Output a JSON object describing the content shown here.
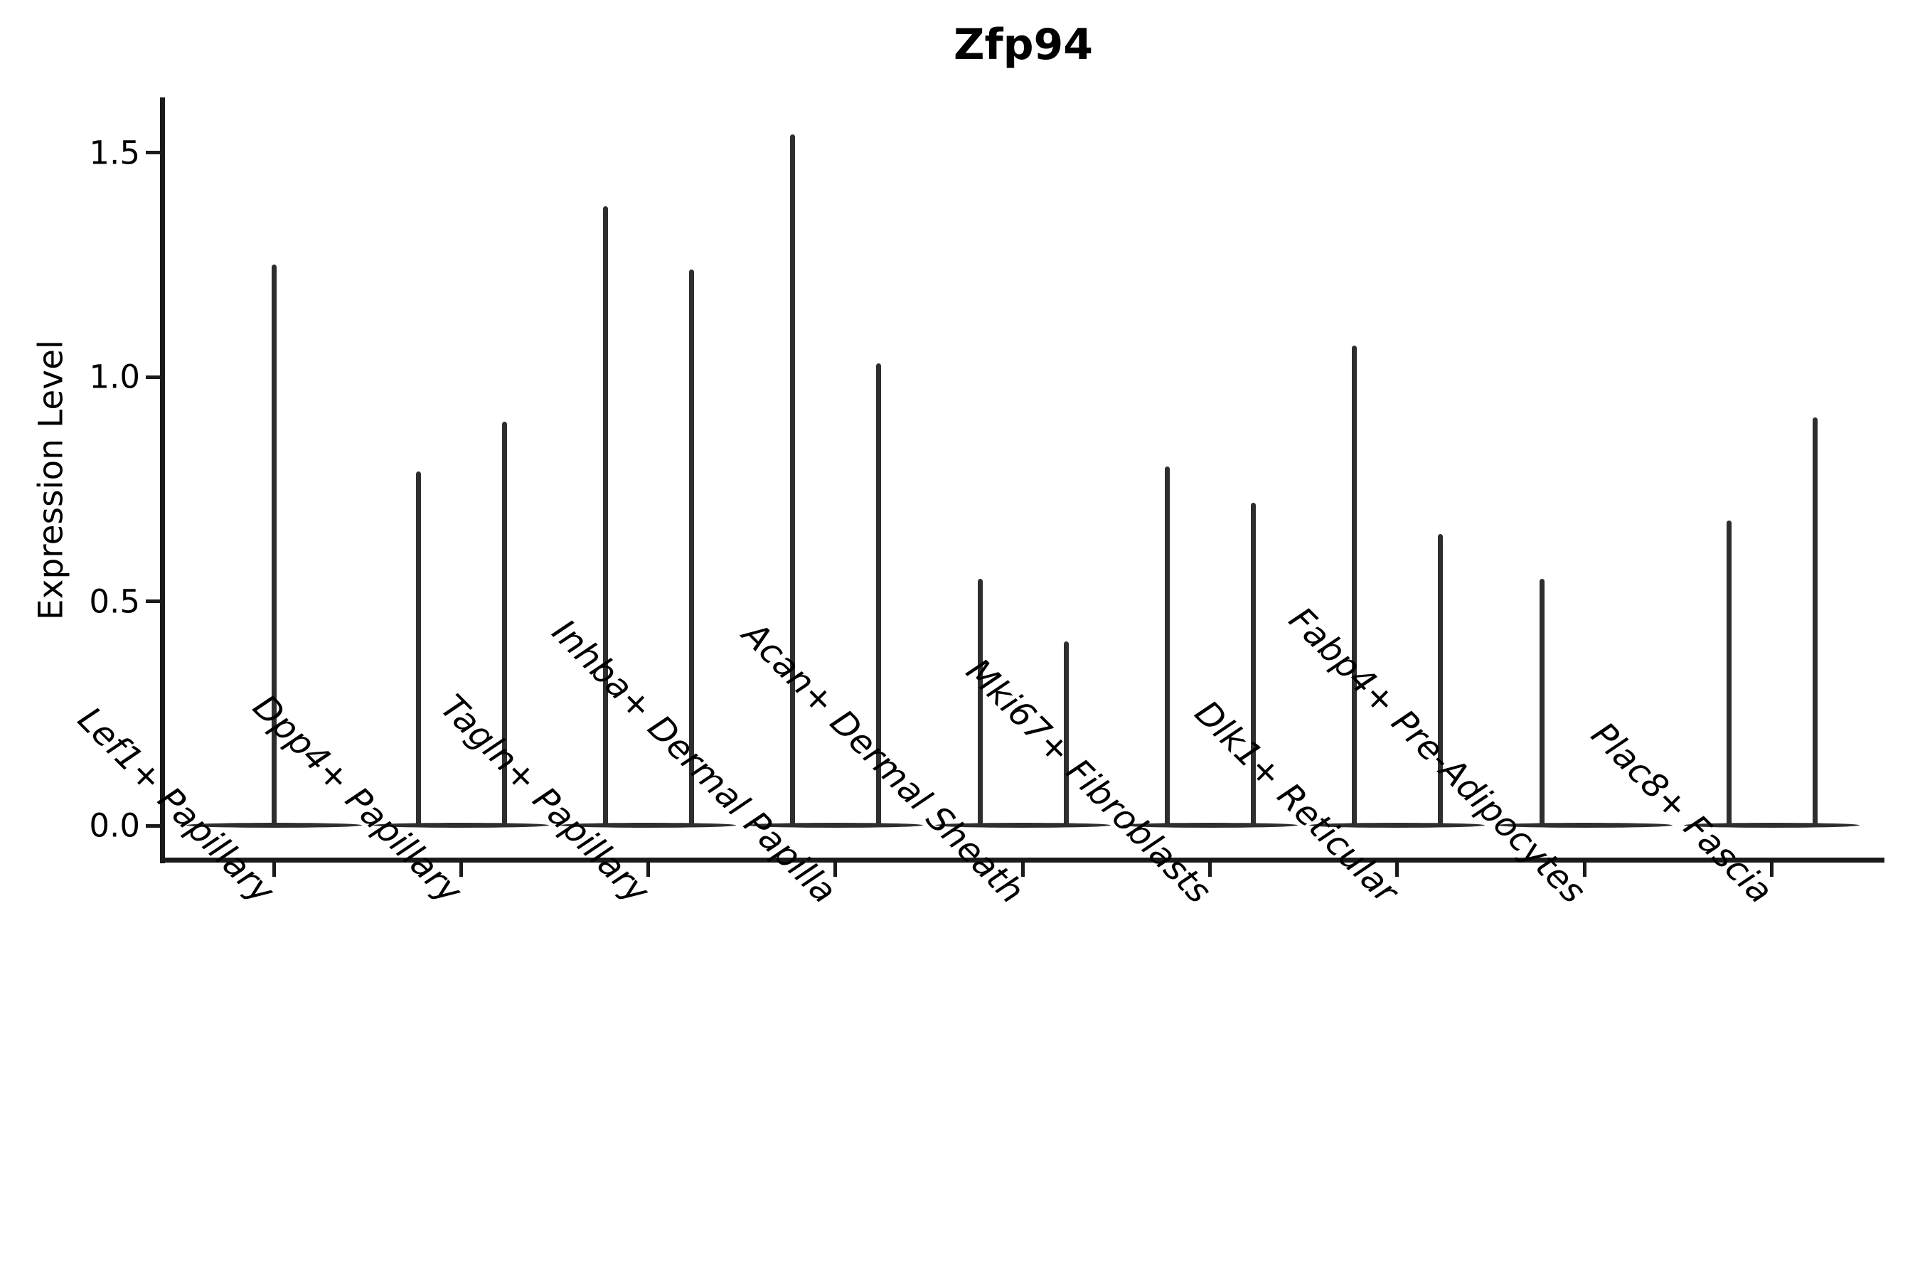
{
  "figure": {
    "title": "Zfp94",
    "y_axis": {
      "label": "Expression Level",
      "tick_labels": [
        "0.0",
        "0.5",
        "1.0",
        "1.5"
      ],
      "tick_values": [
        0.0,
        0.5,
        1.0,
        1.5
      ]
    },
    "x_axis": {
      "categories": [
        "Lef1+ Papillary",
        "Dpp4+ Papillary",
        "Tagln+ Papillary",
        "Inhba+ Dermal Papilla",
        "Acan+ Dermal Sheath",
        "Mki67+ Fibroblasts",
        "Dlk1+ Reticular",
        "Fabp4+ Pre-Adipocytes",
        "Plac8+ Fascia"
      ]
    }
  },
  "chart_data": {
    "type": "violin",
    "title": "Zfp94",
    "xlabel": "",
    "ylabel": "Expression Level",
    "yticks": [
      0.0,
      0.5,
      1.0,
      1.5
    ],
    "ylim": [
      -0.08,
      1.63
    ],
    "grid": false,
    "legend": null,
    "categories": [
      "Lef1+ Papillary",
      "Dpp4+ Papillary",
      "Tagln+ Papillary",
      "Inhba+ Dermal Papilla",
      "Acan+ Dermal Sheath",
      "Mki67+ Fibroblasts",
      "Dlk1+ Reticular",
      "Fabp4+ Pre-Adipocytes",
      "Plac8+ Fascia"
    ],
    "series": [
      {
        "category": "Lef1+ Papillary",
        "violins": [
          {
            "position": "center",
            "max_expression": 1.25
          }
        ]
      },
      {
        "category": "Dpp4+ Papillary",
        "violins": [
          {
            "position": "left",
            "max_expression": 0.79
          },
          {
            "position": "right",
            "max_expression": 0.9
          }
        ]
      },
      {
        "category": "Tagln+ Papillary",
        "violins": [
          {
            "position": "left",
            "max_expression": 1.38
          },
          {
            "position": "right",
            "max_expression": 1.24
          }
        ]
      },
      {
        "category": "Inhba+ Dermal Papilla",
        "violins": [
          {
            "position": "left",
            "max_expression": 1.54
          },
          {
            "position": "right",
            "max_expression": 1.03
          }
        ]
      },
      {
        "category": "Acan+ Dermal Sheath",
        "violins": [
          {
            "position": "left",
            "max_expression": 0.55
          },
          {
            "position": "right",
            "max_expression": 0.41
          }
        ]
      },
      {
        "category": "Mki67+ Fibroblasts",
        "violins": [
          {
            "position": "left",
            "max_expression": 0.8
          },
          {
            "position": "right",
            "max_expression": 0.72
          }
        ]
      },
      {
        "category": "Dlk1+ Reticular",
        "violins": [
          {
            "position": "left",
            "max_expression": 1.07
          },
          {
            "position": "right",
            "max_expression": 0.65
          }
        ]
      },
      {
        "category": "Fabp4+ Pre-Adipocytes",
        "violins": [
          {
            "position": "left",
            "max_expression": 0.55
          },
          {
            "position": "right",
            "max_expression": 0.0
          }
        ]
      },
      {
        "category": "Plac8+ Fascia",
        "violins": [
          {
            "position": "left",
            "max_expression": 0.68
          },
          {
            "position": "right",
            "max_expression": 0.91
          }
        ]
      }
    ],
    "note": "Sparse single-cell expression: each violin collapses to a flat density lens at 0 with a thin central spike reaching the maximum expression value."
  },
  "colors": {
    "violin": "#2e2e2e",
    "axis": "#1a1a1a",
    "text": "#000000",
    "background": "#ffffff"
  }
}
